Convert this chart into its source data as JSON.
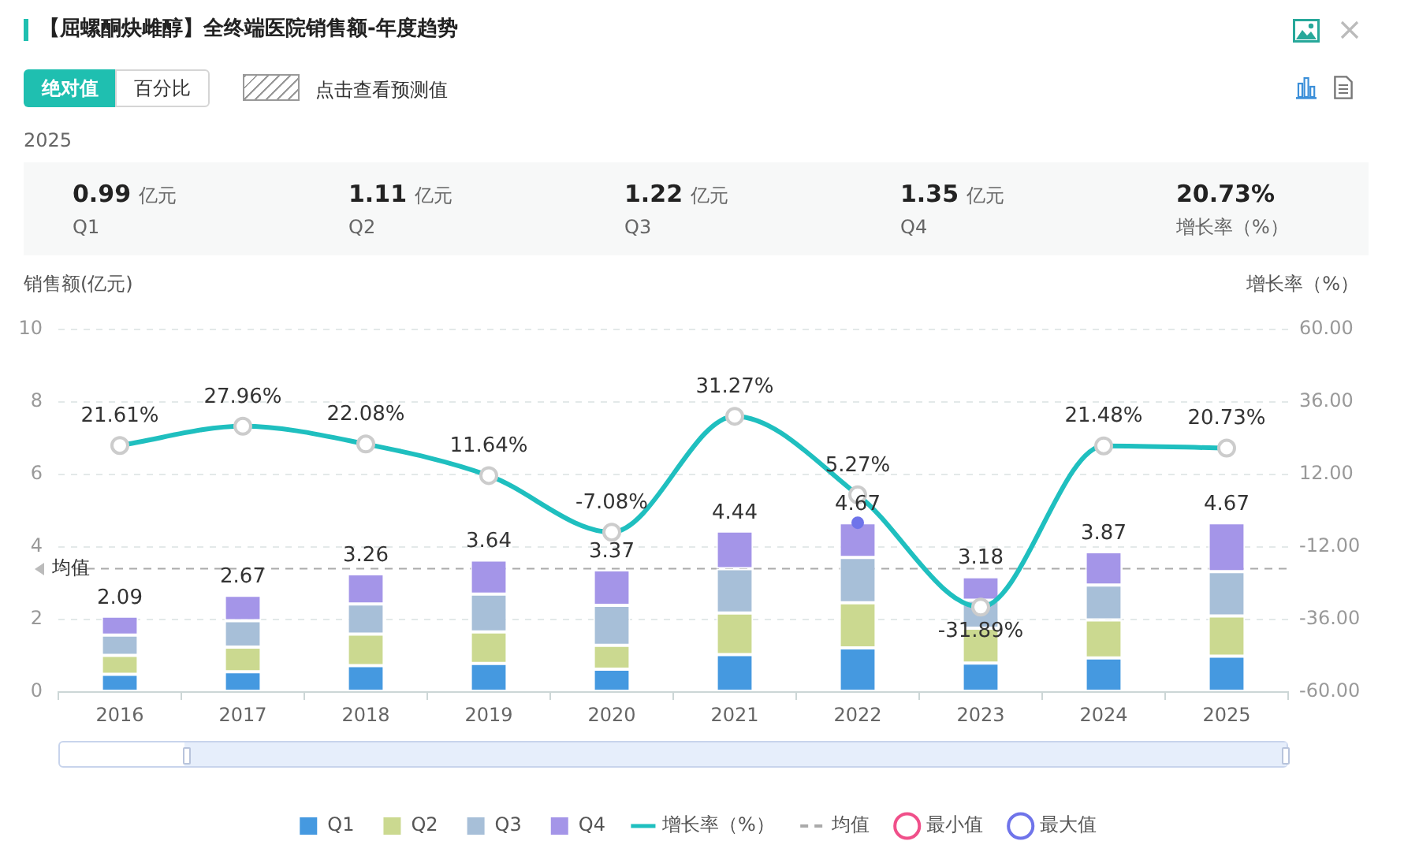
{
  "chart_data": {
    "type": "bar",
    "title": "【屈螺酮炔雌醇】全终端医院销售额-年度趋势",
    "ylabel": "销售额(亿元)",
    "y2label": "增长率（%）",
    "annotations": [
      "绝对值",
      "百分比",
      "点击查看预测值",
      "2025",
      "0.99 亿元",
      "Q1",
      "1.11 亿元",
      "Q2",
      "1.22 亿元",
      "Q3",
      "1.35 亿元",
      "Q4",
      "20.73%",
      "增长率（%）"
    ],
    "categories": [
      "2016",
      "2017",
      "2018",
      "2019",
      "2020",
      "2021",
      "2022",
      "2023",
      "2024",
      "2025"
    ],
    "stacked": true,
    "series": [
      {
        "name": "Q1",
        "color": "#4599e0",
        "values": [
          0.49,
          0.56,
          0.73,
          0.79,
          0.63,
          1.03,
          1.22,
          0.8,
          0.94,
          0.99
        ]
      },
      {
        "name": "Q2",
        "color": "#cbd990",
        "values": [
          0.52,
          0.68,
          0.87,
          0.87,
          0.66,
          1.15,
          1.24,
          0.96,
          1.05,
          1.11
        ]
      },
      {
        "name": "Q3",
        "color": "#a7bfd8",
        "values": [
          0.56,
          0.73,
          0.83,
          1.04,
          1.1,
          1.22,
          1.25,
          0.77,
          0.96,
          1.22
        ]
      },
      {
        "name": "Q4",
        "color": "#a495e8",
        "values": [
          0.52,
          0.7,
          0.83,
          0.94,
          0.98,
          1.04,
          0.96,
          0.65,
          0.92,
          1.35
        ]
      },
      {
        "name": "增长率（%）",
        "type": "line",
        "axis": "y2",
        "color": "#1fbfbf",
        "values": [
          21.61,
          27.96,
          22.08,
          11.64,
          -7.08,
          31.27,
          5.27,
          -31.89,
          21.48,
          20.73
        ],
        "value_labels": [
          "21.61%",
          "27.96%",
          "22.08%",
          "11.64%",
          "-7.08%",
          "31.27%",
          "5.27%",
          "-31.89%",
          "21.48%",
          "20.73%"
        ]
      },
      {
        "name": "最小值",
        "type": "scatter",
        "color": "#f0508a",
        "values": [
          null,
          null,
          null,
          null,
          null,
          null,
          null,
          null,
          null,
          null
        ]
      },
      {
        "name": "最大值",
        "type": "scatter",
        "color": "#6f74ea",
        "values": [
          null,
          null,
          null,
          null,
          null,
          null,
          4.67,
          null,
          null,
          null
        ]
      }
    ],
    "totals": [
      "2.09",
      "2.67",
      "3.26",
      "3.64",
      "3.37",
      "4.44",
      "4.67",
      "3.18",
      "3.87",
      "4.67"
    ],
    "ylim": [
      0,
      10
    ],
    "yticks": [
      0,
      2,
      4,
      6,
      8,
      10
    ],
    "y2lim": [
      -60,
      60
    ],
    "y2ticks": [
      {
        "value": -60,
        "label": "-60.00"
      },
      {
        "value": -36,
        "label": "-36.00"
      },
      {
        "value": -12,
        "label": "-12.00"
      },
      {
        "value": 12,
        "label": "12.00"
      },
      {
        "value": 36,
        "label": "36.00"
      },
      {
        "value": 60,
        "label": "60.00"
      }
    ],
    "ref_lines": [
      {
        "axis": "y",
        "value": 3.4,
        "label": "均值",
        "color": "#aaaaaa",
        "line_style": "dashed"
      }
    ],
    "grid": "y",
    "legend": "bottom",
    "marker": "circle"
  }
}
